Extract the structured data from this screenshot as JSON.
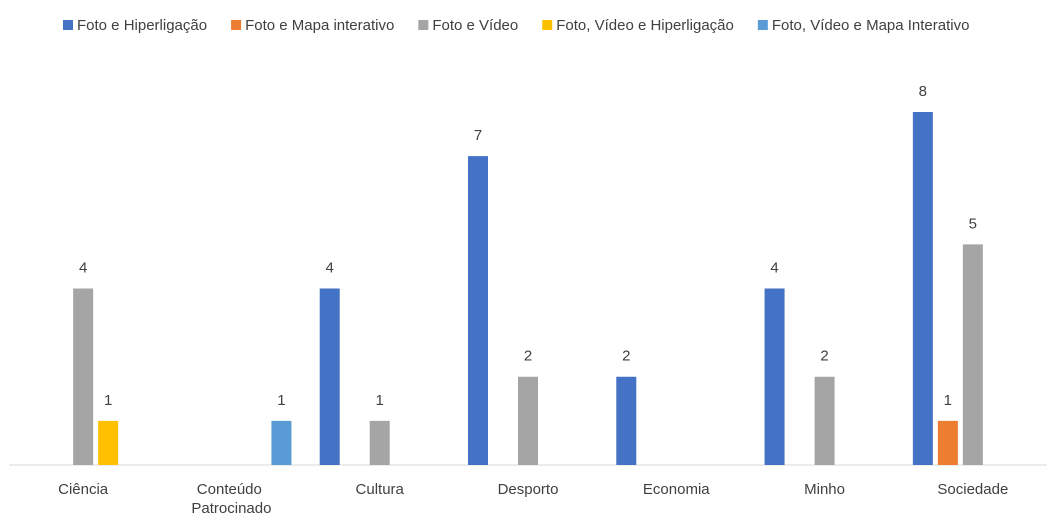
{
  "chart_data": {
    "type": "bar",
    "categories": [
      "Ciência",
      "Conteúdo Patrocinado",
      "Cultura",
      "Desporto",
      "Economia",
      "Minho",
      "Sociedade"
    ],
    "series": [
      {
        "name": "Foto e Hiperligação",
        "color": "#4472c4",
        "values": [
          null,
          null,
          4,
          7,
          2,
          4,
          8
        ]
      },
      {
        "name": "Foto e Mapa interativo",
        "color": "#ed7d31",
        "values": [
          null,
          null,
          null,
          null,
          null,
          null,
          1
        ]
      },
      {
        "name": "Foto e Vídeo",
        "color": "#a5a5a5",
        "values": [
          4,
          null,
          1,
          2,
          null,
          2,
          5
        ]
      },
      {
        "name": "Foto, Vídeo e Hiperligação",
        "color": "#ffc000",
        "values": [
          1,
          null,
          null,
          null,
          null,
          null,
          null
        ]
      },
      {
        "name": "Foto, Vídeo e Mapa Interativo",
        "color": "#5b9bd5",
        "values": [
          null,
          1,
          null,
          null,
          null,
          null,
          null
        ]
      }
    ],
    "ylim": [
      0,
      8
    ],
    "legend": "top"
  }
}
